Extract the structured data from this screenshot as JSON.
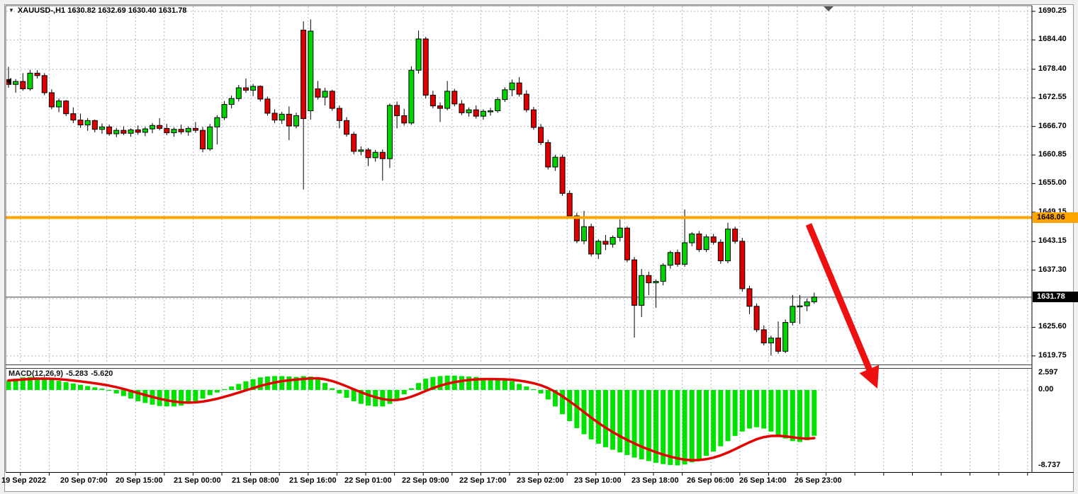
{
  "window": {
    "title": "XAUUSD-,H1 1630.82 1632.69 1630.40 1631.78",
    "symbol": "XAUUSD-",
    "timeframe": "H1",
    "open": "1630.82",
    "high": "1632.69",
    "low": "1630.40",
    "close": "1631.78"
  },
  "price_axis": {
    "labels": [
      "1690.25",
      "1684.40",
      "1678.40",
      "1672.55",
      "1666.70",
      "1660.85",
      "1655.00",
      "1649.15",
      "1643.15",
      "1637.30",
      "1625.60",
      "1619.75"
    ],
    "current_price_tag": "1631.78",
    "hline_tag": "1648.06"
  },
  "time_axis": {
    "labels": [
      "19 Sep 2022",
      "20 Sep 07:00",
      "20 Sep 15:00",
      "21 Sep 00:00",
      "21 Sep 08:00",
      "21 Sep 16:00",
      "22 Sep 01:00",
      "22 Sep 09:00",
      "22 Sep 17:00",
      "23 Sep 02:00",
      "23 Sep 10:00",
      "23 Sep 18:00",
      "26 Sep 06:00",
      "26 Sep 14:00",
      "26 Sep 23:00"
    ]
  },
  "macd_panel": {
    "label": "MACD(12,26,9)",
    "main_value": "-5.283",
    "signal_value": "-5.620",
    "scale_max": "2.597",
    "scale_zero": "0.00",
    "scale_min": "-8.737"
  },
  "annotations": {
    "horizontal_line_price": 1648.06,
    "trend_arrow": "thick red arrow pointing down-right from below resistance line into MACD panel"
  },
  "colors": {
    "bull": "#00D400",
    "bear": "#DE0000",
    "histogram": "#00E300",
    "signal_line": "#E60000",
    "arrow": "#EE1010",
    "hline": "#FFA500",
    "grid": "#A9B4C9",
    "current_price_line": "#808080",
    "tag_current_bg": "#000000",
    "tag_hline_bg": "#FFA500",
    "background": "#FFFFFF",
    "outer_background": "#F0F0F0"
  },
  "chart_data": [
    {
      "type": "candlestick",
      "title": "XAUUSD- H1",
      "x_labels": [
        "19 Sep 2022",
        "20 Sep 07:00",
        "20 Sep 15:00",
        "21 Sep 00:00",
        "21 Sep 08:00",
        "21 Sep 16:00",
        "22 Sep 01:00",
        "22 Sep 09:00",
        "22 Sep 17:00",
        "23 Sep 02:00",
        "23 Sep 10:00",
        "23 Sep 18:00",
        "26 Sep 06:00",
        "26 Sep 14:00",
        "26 Sep 23:00"
      ],
      "ylim": [
        1619.75,
        1690.25
      ],
      "y_ticks": [
        1690.25,
        1684.4,
        1678.4,
        1672.55,
        1666.7,
        1660.85,
        1655.0,
        1649.15,
        1643.15,
        1637.3,
        1625.6,
        1619.75
      ],
      "grid": "dashed",
      "hline": 1648.06,
      "last_close": 1631.78,
      "ohlc": [
        [
          1676.3,
          1678.9,
          1674.6,
          1675.3
        ],
        [
          1675.3,
          1676.4,
          1673.6,
          1675.9
        ],
        [
          1675.9,
          1677.6,
          1674.0,
          1674.4
        ],
        [
          1674.4,
          1678.3,
          1674.0,
          1677.6
        ],
        [
          1677.6,
          1678.2,
          1676.5,
          1677.1
        ],
        [
          1677.1,
          1677.6,
          1673.1,
          1673.6
        ],
        [
          1673.6,
          1674.3,
          1670.2,
          1670.7
        ],
        [
          1670.7,
          1672.4,
          1669.6,
          1671.9
        ],
        [
          1671.9,
          1672.1,
          1668.8,
          1669.3
        ],
        [
          1669.3,
          1670.6,
          1667.4,
          1668.0
        ],
        [
          1668.0,
          1669.3,
          1666.4,
          1667.0
        ],
        [
          1667.0,
          1668.4,
          1665.8,
          1667.9
        ],
        [
          1667.9,
          1668.1,
          1665.5,
          1666.1
        ],
        [
          1666.1,
          1667.3,
          1665.2,
          1666.6
        ],
        [
          1666.6,
          1667.1,
          1664.8,
          1665.2
        ],
        [
          1665.2,
          1666.4,
          1664.5,
          1665.9
        ],
        [
          1665.9,
          1666.7,
          1664.9,
          1665.3
        ],
        [
          1665.3,
          1666.3,
          1664.6,
          1666.0
        ],
        [
          1666.0,
          1666.9,
          1665.0,
          1665.5
        ],
        [
          1665.5,
          1666.6,
          1664.7,
          1666.2
        ],
        [
          1666.2,
          1667.4,
          1665.3,
          1666.9
        ],
        [
          1666.9,
          1668.4,
          1665.9,
          1666.3
        ],
        [
          1666.3,
          1667.2,
          1664.9,
          1665.4
        ],
        [
          1665.4,
          1666.5,
          1664.6,
          1666.1
        ],
        [
          1666.1,
          1667.1,
          1665.1,
          1665.6
        ],
        [
          1665.6,
          1666.7,
          1664.8,
          1666.3
        ],
        [
          1666.3,
          1667.6,
          1665.4,
          1665.9
        ],
        [
          1665.9,
          1666.6,
          1661.4,
          1662.1
        ],
        [
          1662.1,
          1667.2,
          1661.7,
          1666.6
        ],
        [
          1666.6,
          1669.0,
          1663.0,
          1668.5
        ],
        [
          1668.5,
          1671.9,
          1668.0,
          1671.2
        ],
        [
          1671.2,
          1673.0,
          1670.4,
          1672.4
        ],
        [
          1672.4,
          1675.2,
          1671.8,
          1674.6
        ],
        [
          1674.6,
          1676.5,
          1673.6,
          1674.1
        ],
        [
          1674.1,
          1675.4,
          1672.9,
          1674.9
        ],
        [
          1674.9,
          1675.1,
          1671.8,
          1672.3
        ],
        [
          1672.3,
          1672.8,
          1668.9,
          1669.4
        ],
        [
          1669.4,
          1670.2,
          1667.4,
          1668.0
        ],
        [
          1668.0,
          1669.7,
          1667.2,
          1669.2
        ],
        [
          1669.2,
          1670.8,
          1663.9,
          1666.8
        ],
        [
          1666.8,
          1669.5,
          1666.3,
          1668.9
        ],
        [
          1686.4,
          1688.2,
          1653.8,
          1668.3
        ],
        [
          1669.9,
          1688.6,
          1668.1,
          1686.2
        ],
        [
          1674.4,
          1676.0,
          1672.2,
          1672.7
        ],
        [
          1672.7,
          1674.6,
          1671.0,
          1673.9
        ],
        [
          1673.9,
          1674.2,
          1669.9,
          1670.4
        ],
        [
          1670.4,
          1671.0,
          1666.3,
          1667.9
        ],
        [
          1667.9,
          1668.6,
          1664.6,
          1665.1
        ],
        [
          1665.1,
          1665.6,
          1661.0,
          1661.6
        ],
        [
          1661.6,
          1662.6,
          1660.8,
          1661.9
        ],
        [
          1661.9,
          1662.3,
          1658.6,
          1660.3
        ],
        [
          1660.3,
          1661.9,
          1659.5,
          1661.4
        ],
        [
          1661.4,
          1662.0,
          1655.6,
          1660.1
        ],
        [
          1660.1,
          1671.4,
          1658.2,
          1671.0
        ],
        [
          1671.0,
          1671.8,
          1666.3,
          1668.9
        ],
        [
          1668.9,
          1670.3,
          1666.9,
          1667.4
        ],
        [
          1667.4,
          1679.0,
          1667.0,
          1678.2
        ],
        [
          1678.2,
          1686.3,
          1677.5,
          1684.6
        ],
        [
          1684.6,
          1685.0,
          1672.4,
          1673.1
        ],
        [
          1673.1,
          1674.0,
          1670.4,
          1670.9
        ],
        [
          1670.9,
          1671.6,
          1667.6,
          1670.4
        ],
        [
          1670.4,
          1676.0,
          1670.0,
          1673.9
        ],
        [
          1673.9,
          1674.4,
          1670.8,
          1671.3
        ],
        [
          1671.3,
          1672.1,
          1669.0,
          1669.5
        ],
        [
          1669.5,
          1670.6,
          1668.7,
          1670.1
        ],
        [
          1670.1,
          1671.0,
          1668.3,
          1668.8
        ],
        [
          1668.8,
          1670.2,
          1668.1,
          1669.8
        ],
        [
          1669.8,
          1670.5,
          1668.9,
          1669.9
        ],
        [
          1669.9,
          1672.7,
          1669.5,
          1672.2
        ],
        [
          1672.2,
          1674.7,
          1671.7,
          1674.2
        ],
        [
          1674.2,
          1676.3,
          1672.9,
          1675.6
        ],
        [
          1675.6,
          1676.8,
          1672.8,
          1673.3
        ],
        [
          1673.3,
          1674.1,
          1669.6,
          1670.1
        ],
        [
          1670.1,
          1670.7,
          1666.0,
          1666.5
        ],
        [
          1666.5,
          1667.2,
          1662.9,
          1663.4
        ],
        [
          1663.4,
          1664.0,
          1657.9,
          1658.4
        ],
        [
          1658.4,
          1660.9,
          1657.6,
          1660.4
        ],
        [
          1660.4,
          1660.9,
          1652.5,
          1653.0
        ],
        [
          1653.0,
          1653.6,
          1647.9,
          1648.4
        ],
        [
          1648.4,
          1649.0,
          1642.8,
          1643.3
        ],
        [
          1643.3,
          1649.4,
          1642.6,
          1646.2
        ],
        [
          1646.2,
          1646.8,
          1640.1,
          1640.6
        ],
        [
          1640.6,
          1643.6,
          1639.6,
          1643.2
        ],
        [
          1643.2,
          1644.5,
          1641.4,
          1642.6
        ],
        [
          1642.6,
          1644.4,
          1641.9,
          1644.0
        ],
        [
          1644.0,
          1647.7,
          1643.2,
          1645.9
        ],
        [
          1645.9,
          1646.3,
          1638.9,
          1639.4
        ],
        [
          1639.4,
          1640.0,
          1623.5,
          1630.1
        ],
        [
          1630.1,
          1637.5,
          1627.7,
          1636.2
        ],
        [
          1636.2,
          1637.0,
          1632.2,
          1634.7
        ],
        [
          1634.7,
          1635.4,
          1629.6,
          1635.0
        ],
        [
          1635.0,
          1638.7,
          1634.2,
          1638.3
        ],
        [
          1638.3,
          1641.3,
          1637.6,
          1640.9
        ],
        [
          1640.9,
          1641.5,
          1638.0,
          1638.5
        ],
        [
          1638.5,
          1649.7,
          1638.0,
          1642.9
        ],
        [
          1642.9,
          1645.1,
          1642.2,
          1644.7
        ],
        [
          1644.7,
          1645.3,
          1641.0,
          1641.5
        ],
        [
          1641.5,
          1644.6,
          1641.0,
          1644.1
        ],
        [
          1644.1,
          1644.7,
          1642.5,
          1643.0
        ],
        [
          1643.0,
          1643.6,
          1638.6,
          1639.2
        ],
        [
          1639.2,
          1647.0,
          1638.7,
          1645.7
        ],
        [
          1645.7,
          1646.2,
          1642.7,
          1643.2
        ],
        [
          1643.2,
          1643.9,
          1632.9,
          1633.5
        ],
        [
          1633.5,
          1634.1,
          1628.3,
          1629.9
        ],
        [
          1629.9,
          1630.5,
          1624.6,
          1625.1
        ],
        [
          1625.1,
          1626.0,
          1621.9,
          1622.4
        ],
        [
          1622.4,
          1623.9,
          1619.8,
          1623.4
        ],
        [
          1623.4,
          1626.8,
          1620.2,
          1620.7
        ],
        [
          1620.7,
          1627.2,
          1620.3,
          1626.6
        ],
        [
          1626.6,
          1632.2,
          1626.0,
          1629.9
        ],
        [
          1629.9,
          1632.2,
          1626.3,
          1630.0
        ],
        [
          1630.0,
          1631.5,
          1628.9,
          1630.8
        ],
        [
          1630.82,
          1632.69,
          1630.4,
          1631.78
        ]
      ]
    },
    {
      "type": "bar",
      "name": "MACD(12,26,9)",
      "ylim": [
        -8.737,
        2.597
      ],
      "zero_label": "0.00",
      "last_main": -5.283,
      "last_signal": -5.62,
      "signal_note": "red signal line = EMA9 of values",
      "values": [
        1.1,
        1.3,
        1.45,
        1.5,
        1.45,
        1.35,
        1.2,
        1.05,
        0.9,
        0.75,
        0.6,
        0.45,
        0.3,
        0.15,
        -0.1,
        -0.4,
        -0.7,
        -1.0,
        -1.3,
        -1.5,
        -1.7,
        -1.85,
        -1.9,
        -1.9,
        -1.8,
        -1.6,
        -1.3,
        -1.0,
        -0.6,
        -0.3,
        0.1,
        0.4,
        0.7,
        1.0,
        1.25,
        1.45,
        1.55,
        1.6,
        1.6,
        1.55,
        1.5,
        1.6,
        1.55,
        1.4,
        0.8,
        0.2,
        -0.4,
        -0.9,
        -1.3,
        -1.6,
        -1.8,
        -1.9,
        -1.9,
        -1.6,
        -1.1,
        -0.5,
        0.2,
        0.8,
        1.3,
        1.5,
        1.6,
        1.65,
        1.65,
        1.6,
        1.55,
        1.5,
        1.4,
        1.3,
        1.2,
        1.1,
        1.0,
        0.7,
        0.4,
        0.1,
        -0.4,
        -1.1,
        -1.9,
        -2.8,
        -3.6,
        -4.4,
        -5.1,
        -5.7,
        -6.2,
        -6.6,
        -6.9,
        -7.2,
        -7.5,
        -7.8,
        -8.0,
        -8.2,
        -8.4,
        -8.55,
        -8.65,
        -8.7,
        -8.6,
        -8.35,
        -8.0,
        -7.6,
        -7.1,
        -6.5,
        -5.9,
        -5.3,
        -4.8,
        -4.45,
        -4.3,
        -4.45,
        -4.8,
        -5.2,
        -5.6,
        -5.9,
        -6.0,
        -5.8,
        -5.283
      ]
    }
  ]
}
